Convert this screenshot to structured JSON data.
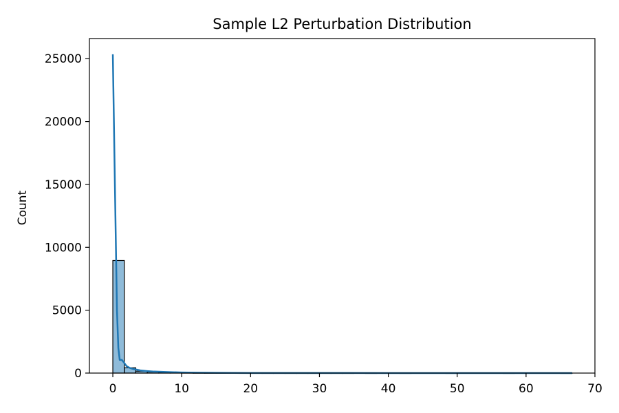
{
  "chart_data": {
    "type": "histogram",
    "title": "Sample L2 Perturbation Distribution",
    "xlabel": "",
    "ylabel": "Count",
    "xlim": [
      -3.4,
      70
    ],
    "ylim": [
      0,
      26600
    ],
    "x_ticks": [
      0,
      10,
      20,
      30,
      40,
      50,
      60,
      70
    ],
    "y_ticks": [
      0,
      5000,
      10000,
      15000,
      20000,
      25000
    ],
    "bins": [
      {
        "x0": 0.0,
        "x1": 1.67,
        "count": 8950
      },
      {
        "x0": 1.67,
        "x1": 3.33,
        "count": 420
      },
      {
        "x0": 3.33,
        "x1": 5.0,
        "count": 150
      },
      {
        "x0": 5.0,
        "x1": 6.67,
        "count": 90
      },
      {
        "x0": 6.67,
        "x1": 8.33,
        "count": 55
      },
      {
        "x0": 8.33,
        "x1": 10.0,
        "count": 35
      },
      {
        "x0": 10.0,
        "x1": 11.67,
        "count": 22
      },
      {
        "x0": 11.67,
        "x1": 13.33,
        "count": 15
      },
      {
        "x0": 13.33,
        "x1": 15.0,
        "count": 10
      },
      {
        "x0": 15.0,
        "x1": 16.67,
        "count": 7
      },
      {
        "x0": 16.67,
        "x1": 18.33,
        "count": 5
      },
      {
        "x0": 18.33,
        "x1": 20.0,
        "count": 4
      },
      {
        "x0": 20.0,
        "x1": 21.67,
        "count": 3
      },
      {
        "x0": 21.67,
        "x1": 23.33,
        "count": 2
      },
      {
        "x0": 23.33,
        "x1": 25.0,
        "count": 2
      },
      {
        "x0": 25.0,
        "x1": 26.67,
        "count": 1
      },
      {
        "x0": 26.67,
        "x1": 28.33,
        "count": 1
      },
      {
        "x0": 28.33,
        "x1": 30.0,
        "count": 1
      },
      {
        "x0": 30.0,
        "x1": 31.67,
        "count": 1
      },
      {
        "x0": 31.67,
        "x1": 33.33,
        "count": 1
      },
      {
        "x0": 33.33,
        "x1": 35.0,
        "count": 1
      },
      {
        "x0": 35.0,
        "x1": 36.67,
        "count": 0
      },
      {
        "x0": 36.67,
        "x1": 38.33,
        "count": 1
      },
      {
        "x0": 38.33,
        "x1": 40.0,
        "count": 0
      },
      {
        "x0": 40.0,
        "x1": 41.67,
        "count": 0
      },
      {
        "x0": 41.67,
        "x1": 43.33,
        "count": 1
      },
      {
        "x0": 43.33,
        "x1": 45.0,
        "count": 0
      },
      {
        "x0": 45.0,
        "x1": 46.67,
        "count": 0
      },
      {
        "x0": 46.67,
        "x1": 48.33,
        "count": 0
      },
      {
        "x0": 48.33,
        "x1": 50.0,
        "count": 1
      },
      {
        "x0": 50.0,
        "x1": 51.67,
        "count": 0
      },
      {
        "x0": 51.67,
        "x1": 53.33,
        "count": 0
      },
      {
        "x0": 53.33,
        "x1": 55.0,
        "count": 0
      },
      {
        "x0": 55.0,
        "x1": 56.67,
        "count": 0
      },
      {
        "x0": 56.67,
        "x1": 58.33,
        "count": 1
      },
      {
        "x0": 58.33,
        "x1": 60.0,
        "count": 0
      },
      {
        "x0": 60.0,
        "x1": 61.67,
        "count": 0
      },
      {
        "x0": 61.67,
        "x1": 63.33,
        "count": 0
      },
      {
        "x0": 63.33,
        "x1": 65.0,
        "count": 0
      },
      {
        "x0": 65.0,
        "x1": 66.67,
        "count": 1
      }
    ],
    "kde": {
      "x": [
        0.0,
        0.3,
        0.6,
        0.8,
        1.0,
        1.3,
        1.6,
        2.0,
        2.5,
        3.0,
        4.0,
        5.0,
        6.0,
        8.0,
        10.0,
        12.0,
        15.0,
        20.0,
        30.0,
        40.0,
        50.0,
        60.0,
        66.7
      ],
      "y": [
        25350,
        15000,
        5000,
        2000,
        1050,
        1050,
        850,
        550,
        400,
        320,
        210,
        160,
        120,
        80,
        50,
        35,
        20,
        10,
        5,
        3,
        2,
        2,
        1
      ]
    },
    "colors": {
      "bar_fill": "#1f77b4",
      "bar_fill_opacity": 0.5,
      "bar_edge": "#000000",
      "kde_line": "#1f77b4",
      "axes": "#000000"
    },
    "grid": false,
    "legend": "none"
  }
}
